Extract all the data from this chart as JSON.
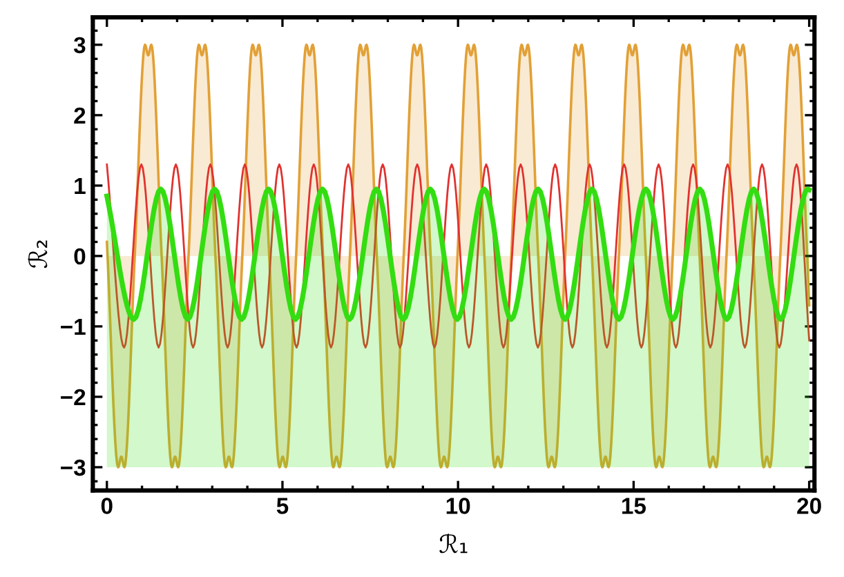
{
  "chart_data": {
    "type": "line",
    "xlabel": "ℛ₁",
    "ylabel": "ℛ₂",
    "xlim": [
      -0.4,
      20.15
    ],
    "ylim": [
      -3.33,
      3.39
    ],
    "xticks": [
      0,
      5,
      10,
      15,
      20
    ],
    "yticks": [
      -3,
      -2,
      -1,
      0,
      1,
      2,
      3
    ],
    "grid": false,
    "legend": false,
    "series": [
      {
        "type": "area",
        "color": "#e2a036",
        "x": [
          0,
          0.32,
          0.41,
          0.5,
          0.793,
          1.086,
          1.176,
          1.266,
          1.559,
          1.852,
          1.942,
          2.032,
          2.325,
          2.618,
          2.708,
          2.798,
          3.091,
          3.384,
          3.474,
          3.564,
          3.857,
          4.15,
          4.24,
          4.33,
          4.623,
          4.916,
          5.006,
          5.096,
          5.389,
          5.682,
          5.772,
          5.862,
          6.155,
          6.448,
          6.538,
          6.628,
          6.921,
          7.214,
          7.304,
          7.394,
          7.687,
          7.98,
          8.07,
          8.16,
          8.453,
          8.746,
          8.836,
          8.926,
          9.219,
          9.512,
          9.602,
          9.692,
          9.985,
          10.278,
          10.368,
          10.458,
          10.751,
          11.044,
          11.134,
          11.224,
          11.517,
          11.81,
          11.9,
          11.99,
          12.283,
          12.576,
          12.666,
          12.756,
          13.049,
          13.342,
          13.432,
          13.522,
          13.815,
          14.108,
          14.198,
          14.288,
          14.581,
          14.874,
          14.964,
          15.054,
          15.347,
          15.64,
          15.73,
          15.82,
          16.113,
          16.406,
          16.496,
          16.586,
          16.879,
          17.172,
          17.262,
          17.352,
          17.645,
          17.938,
          18.028,
          18.118,
          18.411,
          18.704,
          18.794,
          18.884,
          19.177,
          19.47,
          19.56,
          19.65,
          19.943,
          20
        ],
        "values": [
          0.2,
          -3,
          -2.85,
          -3,
          0,
          3,
          2.85,
          3,
          0,
          -3,
          -2.85,
          -3,
          0,
          3,
          2.85,
          3,
          0,
          -3,
          -2.85,
          -3,
          0,
          3,
          2.85,
          3,
          0,
          -3,
          -2.85,
          -3,
          0,
          3,
          2.85,
          3,
          0,
          -3,
          -2.85,
          -3,
          0,
          3,
          2.85,
          3,
          0,
          -3,
          -2.85,
          -3,
          0,
          3,
          2.85,
          3,
          0,
          -3,
          -2.85,
          -3,
          0,
          3,
          2.85,
          3,
          0,
          -3,
          -2.85,
          -3,
          0,
          3,
          2.85,
          3,
          0,
          -3,
          -2.85,
          -3,
          0,
          3,
          2.85,
          3,
          0,
          -3,
          -2.85,
          -3,
          0,
          3,
          2.85,
          3,
          0,
          -3,
          -2.85,
          -3,
          0,
          3,
          2.85,
          3,
          0,
          -3,
          -2.85,
          -3,
          0,
          3,
          2.85,
          3,
          0,
          -3,
          -2.85,
          -3,
          0,
          3,
          2.85,
          3,
          0,
          -0.7
        ]
      },
      {
        "color": "#e0322f",
        "x": [
          0,
          0.491,
          0.982,
          1.473,
          1.964,
          2.455,
          2.946,
          3.437,
          3.928,
          4.419,
          4.91,
          5.401,
          5.892,
          6.383,
          6.874,
          7.365,
          7.856,
          8.347,
          8.838,
          9.329,
          9.82,
          10.311,
          10.802,
          11.293,
          11.784,
          12.275,
          12.766,
          13.257,
          13.748,
          14.239,
          14.73,
          15.221,
          15.712,
          16.203,
          16.694,
          17.185,
          17.676,
          18.167,
          18.658,
          19.149,
          19.64,
          20
        ],
        "values": [
          1.3,
          -1.3,
          1.3,
          -1.3,
          1.3,
          -1.3,
          1.3,
          -1.3,
          1.3,
          -1.3,
          1.3,
          -1.3,
          1.3,
          -1.3,
          1.3,
          -1.3,
          1.3,
          -1.3,
          1.3,
          -1.3,
          1.3,
          -1.3,
          1.3,
          -1.3,
          1.3,
          -1.3,
          1.3,
          -1.3,
          1.3,
          -1.3,
          1.3,
          -1.3,
          1.3,
          -1.3,
          1.3,
          -1.3,
          1.3,
          -1.3,
          1.3,
          -1.3,
          1.3,
          -1.2
        ]
      },
      {
        "type": "line",
        "lower": [
          -3,
          -3,
          -3,
          -3,
          -3,
          -3,
          -3,
          -3,
          -3,
          -3,
          -3,
          -3,
          -3,
          -3,
          -3,
          -3,
          -3,
          -3,
          -3,
          -3,
          -3,
          -3,
          -3,
          -3,
          -3,
          -3,
          -3,
          -3
        ],
        "upper": [
          0.85,
          -0.9,
          0.95,
          -0.9,
          0.95,
          -0.9,
          0.95,
          -0.9,
          0.95,
          -0.9,
          0.95,
          -0.9,
          0.95,
          -0.9,
          0.95,
          -0.9,
          0.95,
          -0.9,
          0.95,
          -0.9,
          0.95,
          -0.9,
          0.95,
          -0.9,
          0.95,
          -0.9,
          0.95,
          0.94
        ],
        "color": "#33dd11",
        "x": [
          0,
          0.7675,
          1.535,
          2.3025,
          3.07,
          3.8375,
          4.605,
          5.3725,
          6.14,
          6.9075,
          7.675,
          8.4425,
          9.21,
          9.9775,
          10.745,
          11.5125,
          12.28,
          13.0475,
          13.815,
          14.5825,
          15.35,
          16.1175,
          16.885,
          17.6525,
          18.42,
          19.1875,
          19.955,
          20
        ],
        "values": [
          0.85,
          -0.9,
          0.95,
          -0.9,
          0.95,
          -0.9,
          0.95,
          -0.9,
          0.95,
          -0.9,
          0.95,
          -0.9,
          0.95,
          -0.9,
          0.95,
          -0.9,
          0.95,
          -0.9,
          0.95,
          -0.9,
          0.95,
          -0.9,
          0.95,
          -0.9,
          0.95,
          -0.9,
          0.95,
          0.94
        ]
      }
    ]
  }
}
